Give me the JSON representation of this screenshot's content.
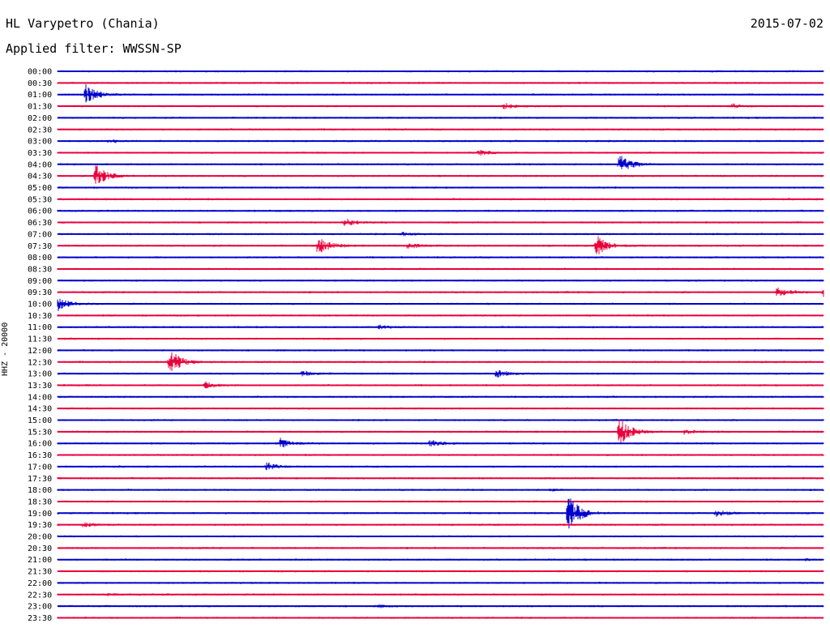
{
  "header": {
    "station": "HL Varypetro (Chania)",
    "date": "2015-07-02",
    "filter": "Applied filter: WWSSN-SP"
  },
  "y_axis_label": "HHZ - 20000",
  "colors": {
    "blue": "#0000cc",
    "red": "#e8003c",
    "background": "#ffffff"
  },
  "chart_data": {
    "type": "line",
    "title": "HL Varypetro (Chania)",
    "row_labels": [
      "00:00",
      "00:30",
      "01:00",
      "01:30",
      "02:00",
      "02:30",
      "03:00",
      "03:30",
      "04:00",
      "04:30",
      "05:00",
      "05:30",
      "06:00",
      "06:30",
      "07:00",
      "07:30",
      "08:00",
      "08:30",
      "09:00",
      "09:30",
      "10:00",
      "10:30",
      "11:00",
      "11:30",
      "12:00",
      "12:30",
      "13:00",
      "13:30",
      "14:00",
      "14:30",
      "15:00",
      "15:30",
      "16:00",
      "16:30",
      "17:00",
      "17:30",
      "18:00",
      "18:30",
      "19:00",
      "19:30",
      "20:00",
      "20:30",
      "21:00",
      "21:30",
      "22:00",
      "22:30",
      "23:00",
      "23:30"
    ],
    "row_colors": [
      "blue",
      "red"
    ],
    "events": [
      {
        "row": 2,
        "minute": 1.1,
        "amplitude": 1.0
      },
      {
        "row": 3,
        "minute": 17.5,
        "amplitude": 0.3
      },
      {
        "row": 3,
        "minute": 26.4,
        "amplitude": 0.2
      },
      {
        "row": 6,
        "minute": 2.0,
        "amplitude": 0.2
      },
      {
        "row": 7,
        "minute": 16.5,
        "amplitude": 0.3
      },
      {
        "row": 8,
        "minute": 22.0,
        "amplitude": 1.0
      },
      {
        "row": 9,
        "minute": 1.5,
        "amplitude": 1.2
      },
      {
        "row": 13,
        "minute": 11.2,
        "amplitude": 0.5
      },
      {
        "row": 14,
        "minute": 13.5,
        "amplitude": 0.2
      },
      {
        "row": 15,
        "minute": 10.2,
        "amplitude": 1.0
      },
      {
        "row": 15,
        "minute": 13.7,
        "amplitude": 0.3
      },
      {
        "row": 15,
        "minute": 21.1,
        "amplitude": 1.1
      },
      {
        "row": 19,
        "minute": 28.2,
        "amplitude": 0.5
      },
      {
        "row": 19,
        "minute": 30.0,
        "amplitude": 0.6
      },
      {
        "row": 20,
        "minute": 0.0,
        "amplitude": 0.7
      },
      {
        "row": 22,
        "minute": 12.6,
        "amplitude": 0.2
      },
      {
        "row": 25,
        "minute": 4.4,
        "amplitude": 1.3
      },
      {
        "row": 26,
        "minute": 9.6,
        "amplitude": 0.3
      },
      {
        "row": 26,
        "minute": 17.2,
        "amplitude": 0.4
      },
      {
        "row": 27,
        "minute": 5.8,
        "amplitude": 0.3
      },
      {
        "row": 31,
        "minute": 22.0,
        "amplitude": 1.5
      },
      {
        "row": 31,
        "minute": 24.5,
        "amplitude": 0.3
      },
      {
        "row": 32,
        "minute": 8.7,
        "amplitude": 0.5
      },
      {
        "row": 32,
        "minute": 14.6,
        "amplitude": 0.4
      },
      {
        "row": 34,
        "minute": 8.2,
        "amplitude": 0.4
      },
      {
        "row": 36,
        "minute": 19.3,
        "amplitude": 0.1
      },
      {
        "row": 38,
        "minute": 20.0,
        "amplitude": 2.0
      },
      {
        "row": 38,
        "minute": 25.8,
        "amplitude": 0.4
      },
      {
        "row": 39,
        "minute": 1.0,
        "amplitude": 0.2
      },
      {
        "row": 42,
        "minute": 29.3,
        "amplitude": 0.1
      },
      {
        "row": 45,
        "minute": 2.0,
        "amplitude": 0.1
      },
      {
        "row": 46,
        "minute": 12.6,
        "amplitude": 0.1
      }
    ]
  }
}
